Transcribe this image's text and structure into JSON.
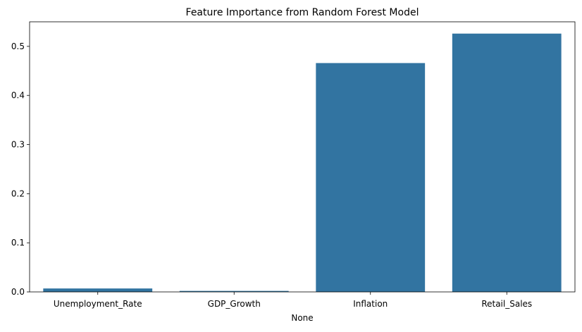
{
  "chart_data": {
    "type": "bar",
    "title": "Feature Importance from Random Forest Model",
    "xlabel": "None",
    "ylabel": "",
    "categories": [
      "Unemployment_Rate",
      "GDP_Growth",
      "Inflation",
      "Retail_Sales"
    ],
    "values": [
      0.007,
      0.002,
      0.466,
      0.526
    ],
    "ylim": [
      0,
      0.55
    ],
    "yticks": [
      0.0,
      0.1,
      0.2,
      0.3,
      0.4,
      0.5
    ],
    "ytick_labels": [
      "0.0",
      "0.1",
      "0.2",
      "0.3",
      "0.4",
      "0.5"
    ],
    "grid": false,
    "bar_color": "#3274a1"
  }
}
